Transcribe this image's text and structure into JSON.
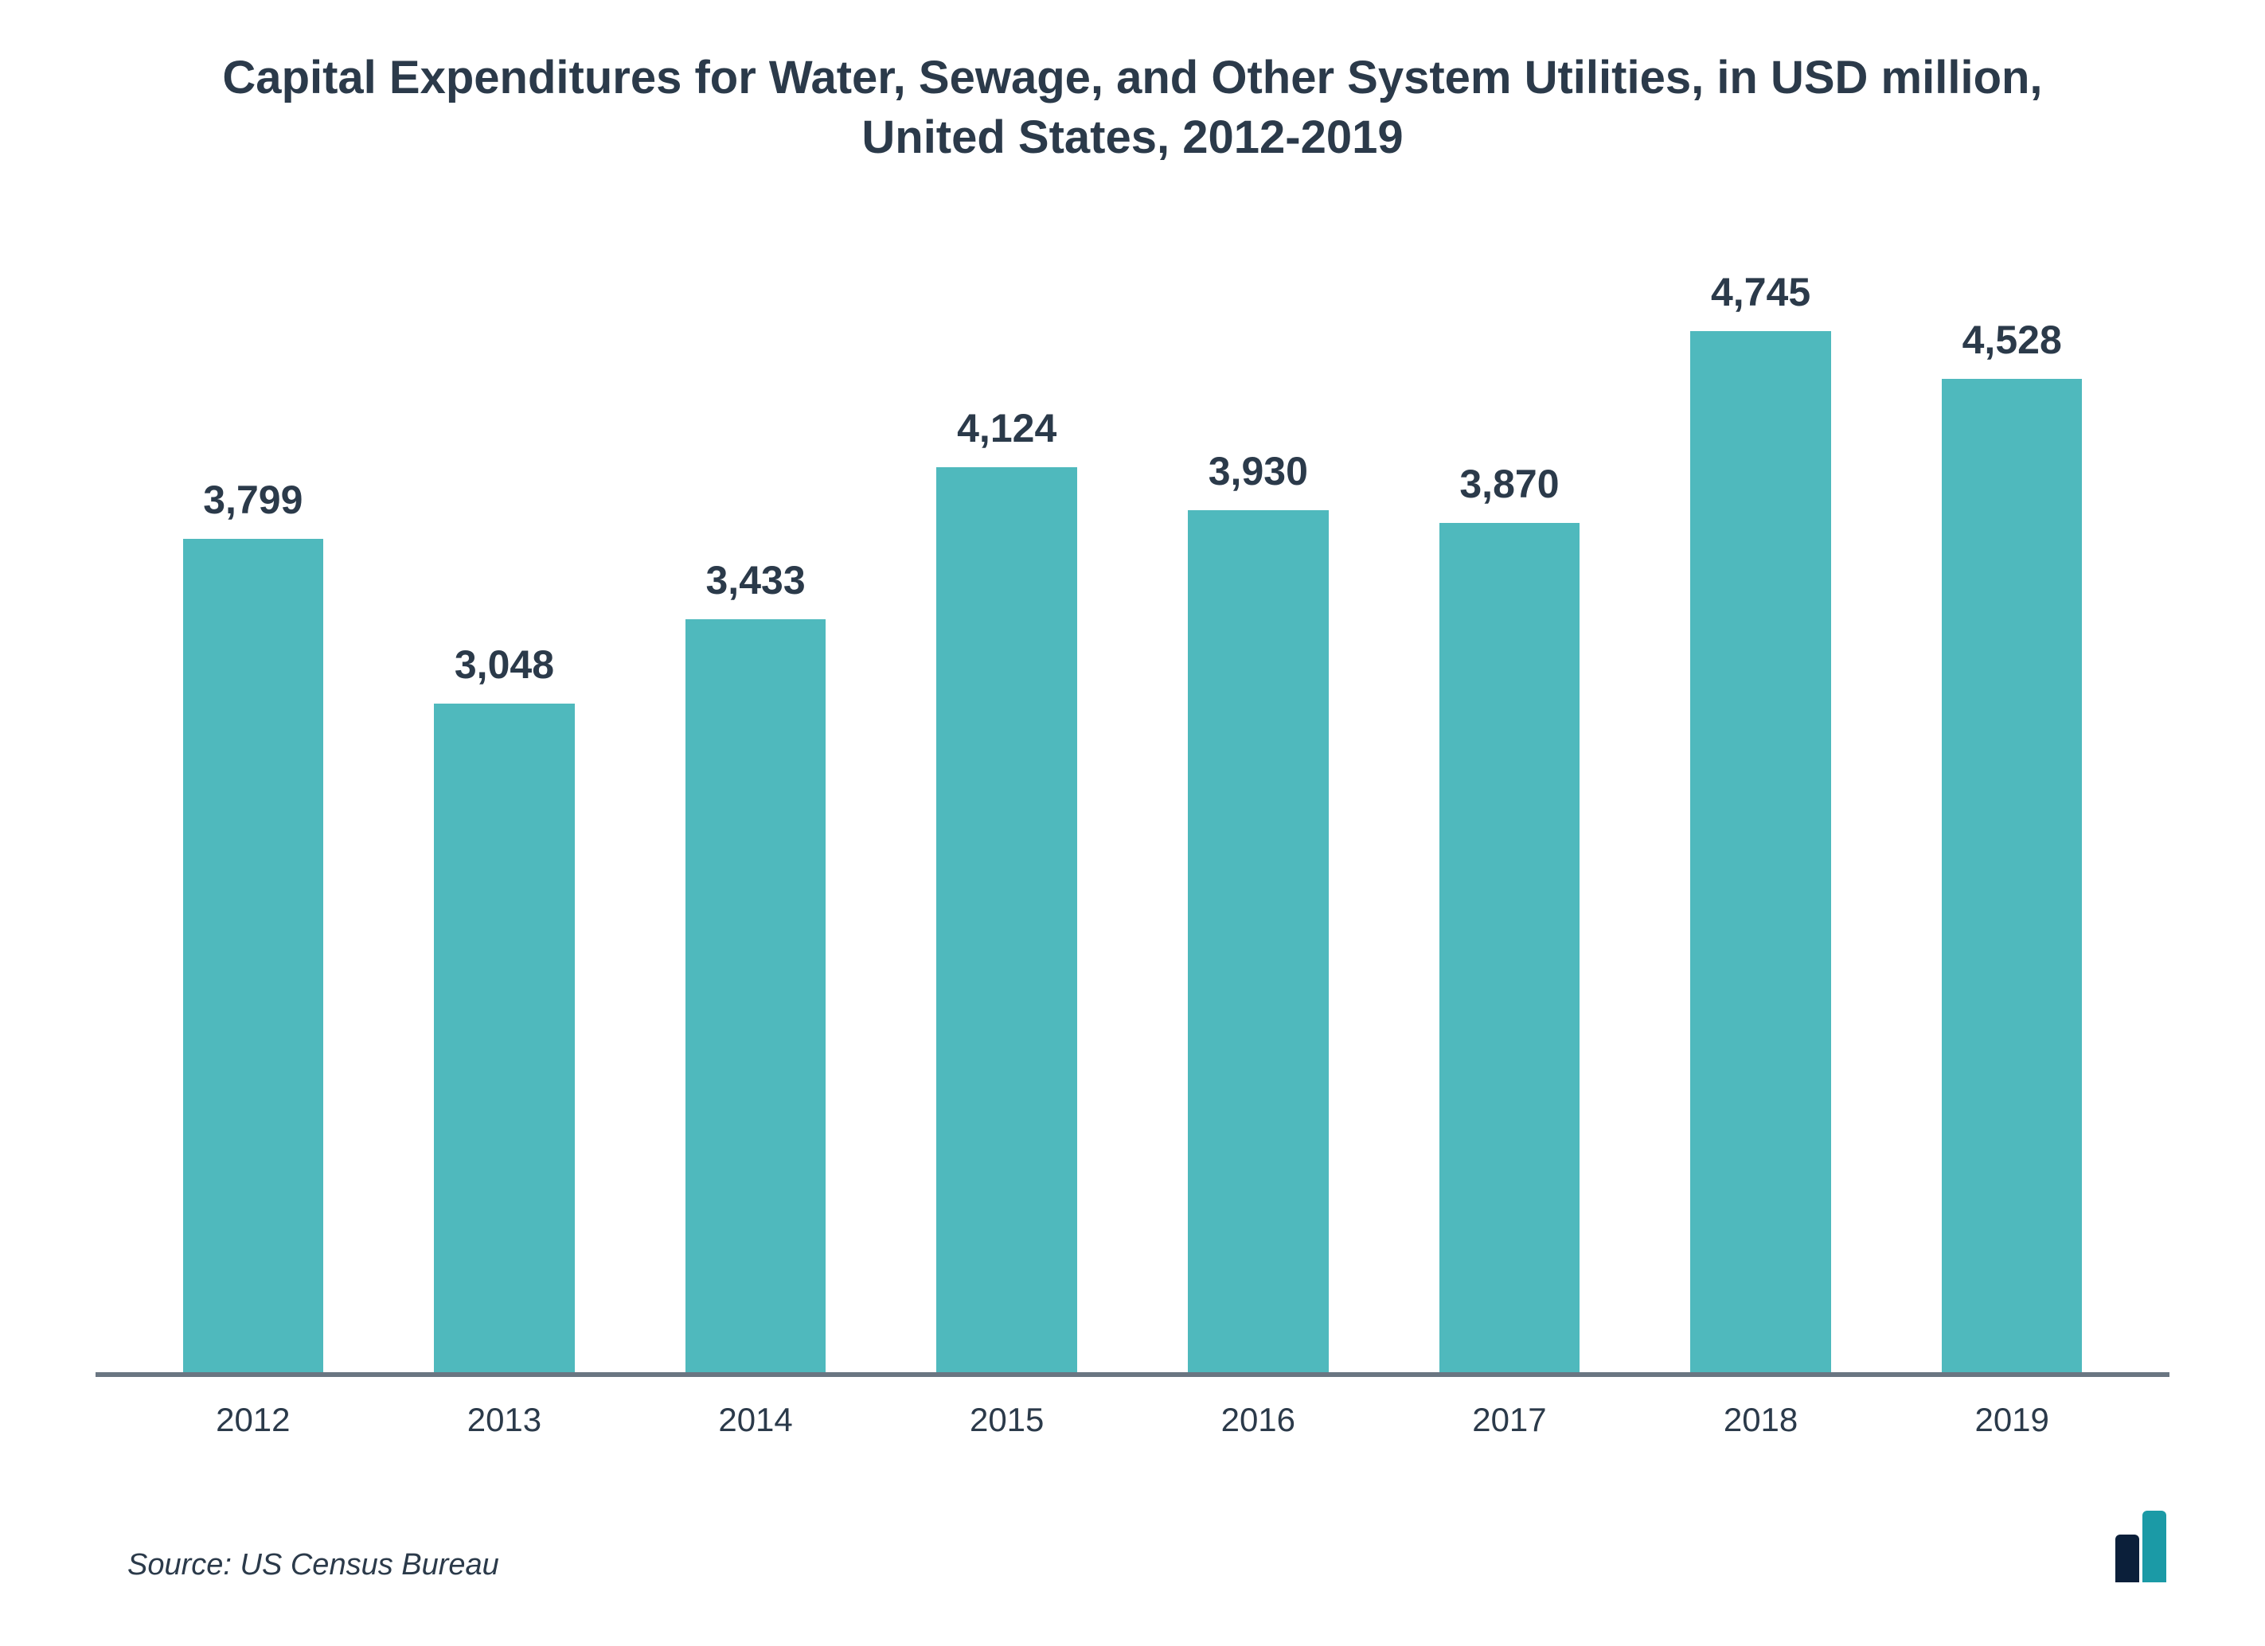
{
  "chart": {
    "type": "bar",
    "title": "Capital Expenditures for Water, Sewage, and Other System Utilities, in USD million, United States, 2012-2019",
    "title_fontsize": 58,
    "title_color": "#2b3a4a",
    "categories": [
      "2012",
      "2013",
      "2014",
      "2015",
      "2016",
      "2017",
      "2018",
      "2019"
    ],
    "values": [
      3799,
      3048,
      3433,
      4124,
      3930,
      3870,
      4745,
      4528
    ],
    "value_labels": [
      "3,799",
      "3,048",
      "3,433",
      "4,124",
      "3,930",
      "3,870",
      "4,745",
      "4,528"
    ],
    "bar_color": "#4fb9bd",
    "value_label_fontsize": 50,
    "value_label_color": "#2b3a4a",
    "xlabel_fontsize": 42,
    "xlabel_color": "#2b3a4a",
    "axis_color": "#6a7682",
    "ymax": 5200,
    "background_color": "#ffffff",
    "bar_width_ratio": 0.68
  },
  "source": {
    "text": "Source: US Census Bureau",
    "fontsize": 38,
    "color": "#2b3a4a"
  },
  "logo": {
    "bar1_color": "#0b1f3a",
    "bar1_height": 60,
    "bar2_color": "#1b9aa6",
    "bar2_height": 90
  }
}
